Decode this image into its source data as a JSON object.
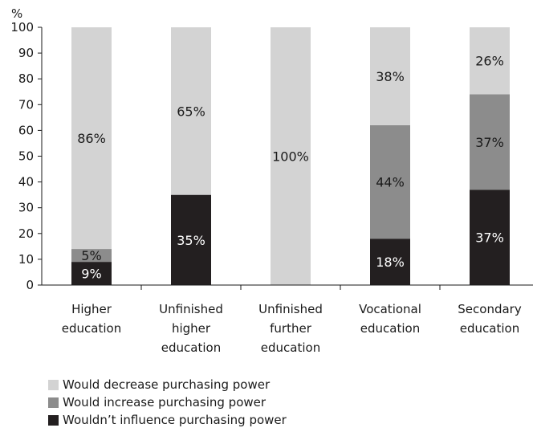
{
  "chart_data": {
    "type": "bar",
    "stacked": true,
    "ylabel": "%",
    "ylim": [
      0,
      100
    ],
    "yticks": [
      0,
      10,
      20,
      30,
      40,
      50,
      60,
      70,
      80,
      90,
      100
    ],
    "grid": false,
    "legend_position": "bottom",
    "categories": [
      "Higher education",
      "Unfinished higher education",
      "Unfinished further education",
      "Vocational education",
      "Secondary education"
    ],
    "category_lines": [
      [
        "Higher",
        "education"
      ],
      [
        "Unfinished",
        "higher",
        "education"
      ],
      [
        "Unfinished",
        "further",
        "education"
      ],
      [
        "Vocational",
        "education"
      ],
      [
        "Secondary",
        "education"
      ]
    ],
    "series": [
      {
        "name": "Wouldn’t influence purchasing power",
        "color": "#231f20",
        "label_color": "#ffffff",
        "values": [
          9,
          35,
          0,
          18,
          37
        ],
        "labels": [
          "9%",
          "35%",
          "",
          "18%",
          "37%"
        ]
      },
      {
        "name": "Would increase purchasing power",
        "color": "#8c8c8c",
        "label_color": "#1a1a1a",
        "values": [
          5,
          0,
          0,
          44,
          37
        ],
        "labels": [
          "5%",
          "",
          "",
          "44%",
          "37%"
        ]
      },
      {
        "name": "Would decrease purchasing power",
        "color": "#d3d3d3",
        "label_color": "#1a1a1a",
        "values": [
          86,
          65,
          100,
          38,
          26
        ],
        "labels": [
          "86%",
          "65%",
          "100%",
          "38%",
          "26%"
        ]
      }
    ],
    "legend_order": [
      2,
      1,
      0
    ]
  }
}
